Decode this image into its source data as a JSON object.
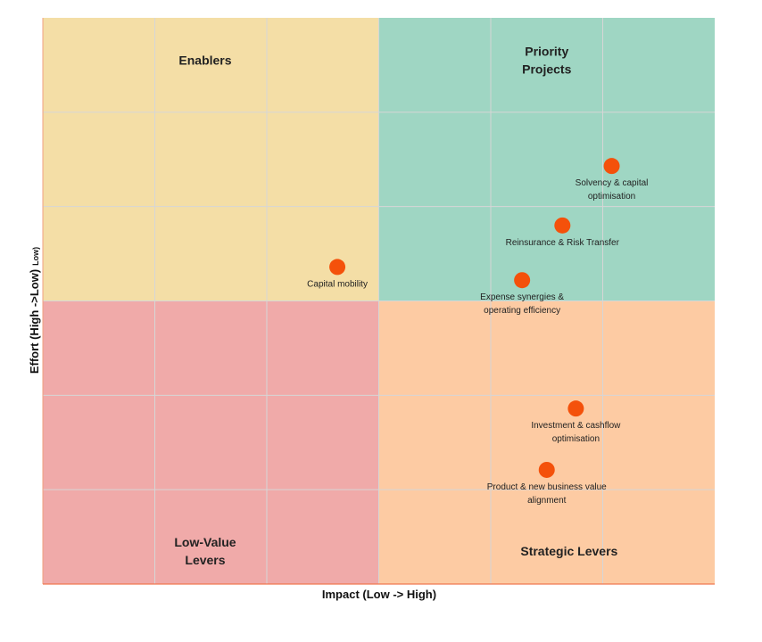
{
  "chart_data": {
    "type": "scatter",
    "title": "",
    "xlabel": "Impact (Low -> High)",
    "ylabel": "Effort (High ->Low)",
    "ylabel_suffix": "Low)",
    "xlim": [
      0,
      6
    ],
    "ylim": [
      0,
      6
    ],
    "grid": true,
    "quadrants": [
      {
        "name": "Enablers",
        "lines": [
          "Enablers"
        ],
        "color": "#f4dea6",
        "x_range": [
          0,
          3
        ],
        "y_range": [
          3,
          6
        ],
        "label_x": 1.45,
        "label_y": 5.55
      },
      {
        "name": "Priority Projects",
        "lines": [
          "Priority",
          "Projects"
        ],
        "color": "#9fd6c3",
        "x_range": [
          3,
          6
        ],
        "y_range": [
          3,
          6
        ],
        "label_x": 4.5,
        "label_y": 5.55
      },
      {
        "name": "Low-Value Levers",
        "lines": [
          "Low-Value",
          "Levers"
        ],
        "color": "#f0aaa9",
        "x_range": [
          0,
          3
        ],
        "y_range": [
          0,
          3
        ],
        "label_x": 1.45,
        "label_y": 0.35
      },
      {
        "name": "Strategic Levers",
        "lines": [
          "Strategic Levers"
        ],
        "color": "#fdcba3",
        "x_range": [
          3,
          6
        ],
        "y_range": [
          0,
          3
        ],
        "label_x": 4.7,
        "label_y": 0.35
      }
    ],
    "points": [
      {
        "label": "Solvency & capital optimisation",
        "lines": [
          "Solvency & capital",
          "optimisation"
        ],
        "x": 5.08,
        "y": 4.43
      },
      {
        "label": "Reinsurance & Risk Transfer",
        "lines": [
          "Reinsurance & Risk Transfer"
        ],
        "x": 4.64,
        "y": 3.8
      },
      {
        "label": "Capital mobility",
        "lines": [
          "Capital mobility"
        ],
        "x": 2.63,
        "y": 3.36
      },
      {
        "label": "Expense synergies & operating efficiency",
        "lines": [
          "Expense synergies &",
          "operating efficiency"
        ],
        "x": 4.28,
        "y": 3.22
      },
      {
        "label": "Investment & cashflow optimisation",
        "lines": [
          "Investment & cashflow",
          "optimisation"
        ],
        "x": 4.76,
        "y": 1.86
      },
      {
        "label": "Product & new business value alignment",
        "lines": [
          "Product & new business value",
          "alignment"
        ],
        "x": 4.5,
        "y": 1.21
      }
    ],
    "point_color": "#f4510b"
  }
}
